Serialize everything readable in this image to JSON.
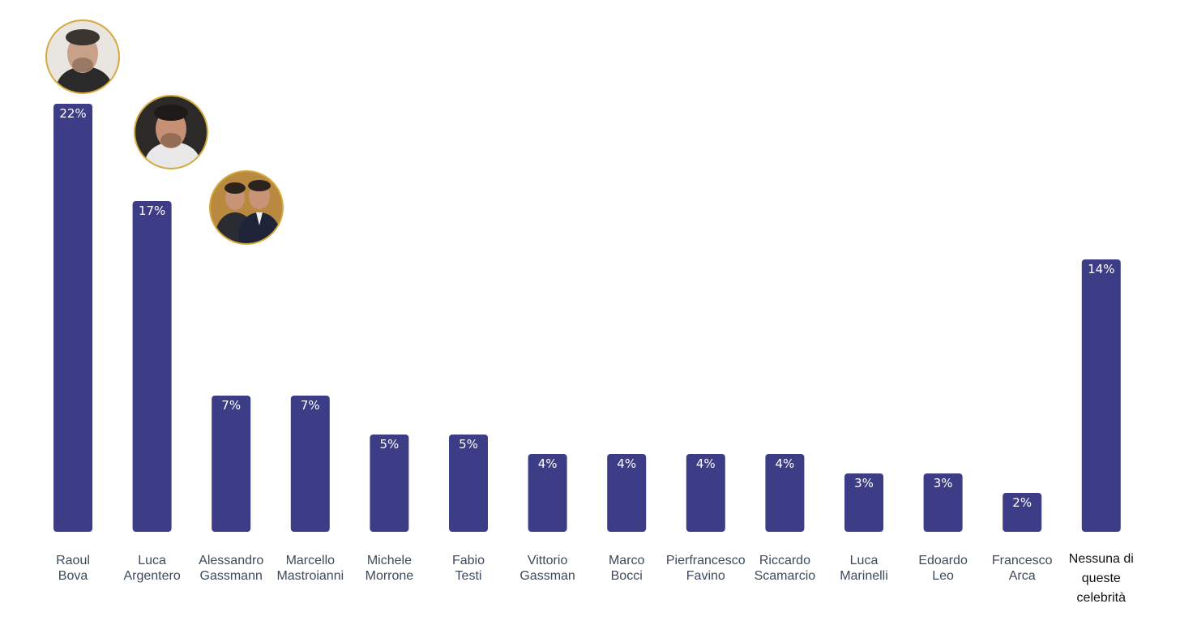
{
  "chart_data": {
    "type": "bar",
    "title": "",
    "xlabel": "",
    "ylabel": "",
    "ylim": [
      0,
      22
    ],
    "grid": false,
    "legend": "none",
    "value_suffix": "%",
    "bar_color": "#3d3d87",
    "categories": [
      "Raoul Bova",
      "Luca Argentero",
      "Alessandro Gassmann",
      "Marcello Mastroianni",
      "Michele Morrone",
      "Fabio Testi",
      "Vittorio Gassman",
      "Marco Bocci",
      "Pierfrancesco Favino",
      "Riccardo Scamarcio",
      "Luca Marinelli",
      "Edoardo Leo",
      "Francesco Arca",
      "Nessuna di queste celebrità"
    ],
    "category_lines": [
      [
        "Raoul",
        "Bova"
      ],
      [
        "Luca",
        "Argentero"
      ],
      [
        "Alessandro",
        "Gassmann"
      ],
      [
        "Marcello",
        "Mastroianni"
      ],
      [
        "Michele",
        "Morrone"
      ],
      [
        "Fabio",
        "Testi"
      ],
      [
        "Vittorio",
        "Gassman"
      ],
      [
        "Marco",
        "Bocci"
      ],
      [
        "Pierfrancesco",
        "Favino"
      ],
      [
        "Riccardo",
        "Scamarcio"
      ],
      [
        "Luca",
        "Marinelli"
      ],
      [
        "Edoardo",
        "Leo"
      ],
      [
        "Francesco",
        "Arca"
      ],
      [
        "Nessuna di",
        "queste",
        "celebrità"
      ]
    ],
    "values": [
      22,
      17,
      7,
      7,
      5,
      5,
      4,
      4,
      4,
      4,
      3,
      3,
      2,
      14
    ],
    "value_labels": [
      "22%",
      "17%",
      "7%",
      "7%",
      "5%",
      "5%",
      "4%",
      "4%",
      "4%",
      "4%",
      "3%",
      "3%",
      "2%",
      "14%"
    ],
    "photos": [
      {
        "category": "Raoul Bova",
        "icon": "portrait-photo-icon"
      },
      {
        "category": "Luca Argentero",
        "icon": "portrait-photo-icon"
      },
      {
        "category": "Alessandro Gassmann",
        "icon": "portrait-photo-icon"
      }
    ]
  }
}
